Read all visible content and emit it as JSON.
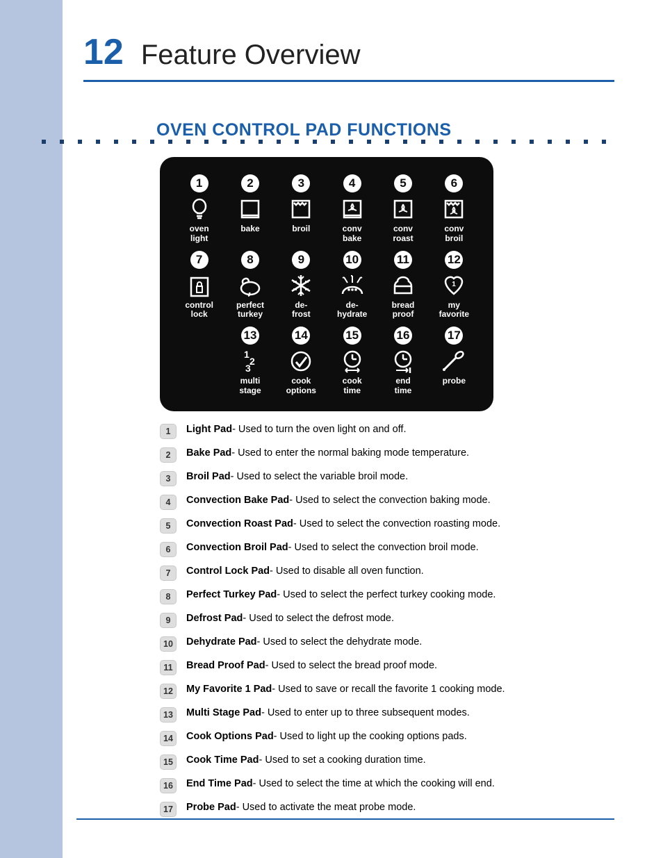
{
  "page_number": "12",
  "page_title": "Feature Overview",
  "section_title": "OVEN CONTROL PAD FUNCTIONS",
  "colors": {
    "sidebar": "#b5c5e0",
    "accent": "#1b5eaa",
    "panel_bg": "#0d0d0d",
    "dot": "#1b3f6a",
    "legend_bg": "#dedede"
  },
  "pads": [
    {
      "n": "1",
      "icon": "light",
      "label": "oven\nlight"
    },
    {
      "n": "2",
      "icon": "bake",
      "label": "bake"
    },
    {
      "n": "3",
      "icon": "broil",
      "label": "broil"
    },
    {
      "n": "4",
      "icon": "convbake",
      "label": "conv\nbake"
    },
    {
      "n": "5",
      "icon": "convroast",
      "label": "conv\nroast"
    },
    {
      "n": "6",
      "icon": "convbroil",
      "label": "conv\nbroil"
    },
    {
      "n": "7",
      "icon": "lock",
      "label": "control\nlock"
    },
    {
      "n": "8",
      "icon": "turkey",
      "label": "perfect\nturkey"
    },
    {
      "n": "9",
      "icon": "defrost",
      "label": "de-\nfrost"
    },
    {
      "n": "10",
      "icon": "dehydrate",
      "label": "de-\nhydrate"
    },
    {
      "n": "11",
      "icon": "bread",
      "label": "bread\nproof"
    },
    {
      "n": "12",
      "icon": "fav",
      "label": "my\nfavorite"
    },
    {
      "n": "13",
      "icon": "multi",
      "label": "multi\nstage"
    },
    {
      "n": "14",
      "icon": "cookopt",
      "label": "cook\noptions"
    },
    {
      "n": "15",
      "icon": "cooktime",
      "label": "cook\ntime"
    },
    {
      "n": "16",
      "icon": "endtime",
      "label": "end\ntime"
    },
    {
      "n": "17",
      "icon": "probe",
      "label": "probe"
    }
  ],
  "definitions": [
    {
      "n": "1",
      "name": "Light Pad",
      "desc": "- Used to turn the oven light on and off."
    },
    {
      "n": "2",
      "name": "Bake Pad",
      "desc": "- Used to enter the normal baking mode temperature."
    },
    {
      "n": "3",
      "name": "Broil Pad",
      "desc": "- Used to select the variable broil mode."
    },
    {
      "n": "4",
      "name": "Convection Bake Pad",
      "desc": "- Used to select the convection baking mode."
    },
    {
      "n": "5",
      "name": "Convection Roast Pad",
      "desc": "- Used to select the convection roasting mode."
    },
    {
      "n": "6",
      "name": "Convection Broil Pad",
      "desc": "- Used to select the convection broil mode."
    },
    {
      "n": "7",
      "name": "Control Lock Pad",
      "desc": "- Used to disable all oven function."
    },
    {
      "n": "8",
      "name": "Perfect Turkey Pad",
      "desc": "- Used to select the perfect turkey cooking mode."
    },
    {
      "n": "9",
      "name": "Defrost Pad",
      "desc": "- Used to select the defrost mode."
    },
    {
      "n": "10",
      "name": "Dehydrate Pad",
      "desc": "- Used to select the dehydrate mode."
    },
    {
      "n": "11",
      "name": "Bread Proof Pad",
      "desc": "- Used to select the bread proof mode."
    },
    {
      "n": "12",
      "name": "My Favorite 1 Pad",
      "desc": "- Used to save or recall the favorite 1 cooking mode."
    },
    {
      "n": "13",
      "name": "Multi Stage Pad",
      "desc": "- Used to enter up to three subsequent modes."
    },
    {
      "n": "14",
      "name": "Cook Options Pad",
      "desc": "- Used to light up the cooking options pads."
    },
    {
      "n": "15",
      "name": "Cook Time Pad",
      "desc": "- Used to set a cooking duration time."
    },
    {
      "n": "16",
      "name": "End Time Pad",
      "desc": "- Used to select the time at which the cooking will end."
    },
    {
      "n": "17",
      "name": "Probe Pad",
      "desc": "- Used to activate the meat probe mode."
    }
  ]
}
